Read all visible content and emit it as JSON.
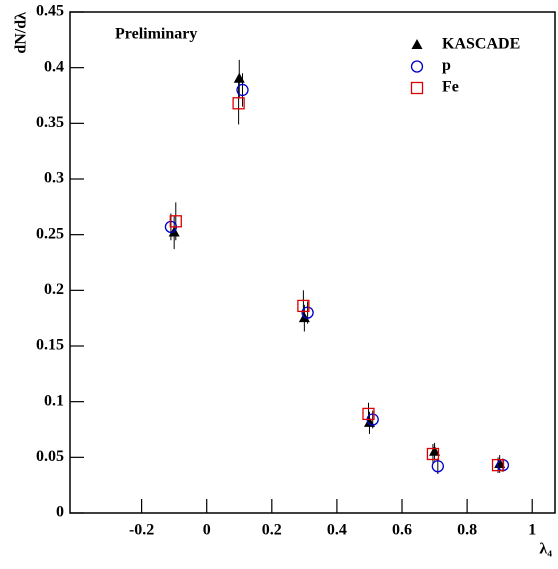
{
  "chart_data": {
    "type": "scatter",
    "annotation": "Preliminary",
    "ylabel": "dN/dλ",
    "xlabel": "λ₄",
    "xlim": [
      -0.42,
      1.07
    ],
    "ylim": [
      0,
      0.45
    ],
    "xticks": [
      -0.2,
      0,
      0.2,
      0.4,
      0.6,
      0.8,
      1
    ],
    "yticks": [
      0,
      0.05,
      0.1,
      0.15,
      0.2,
      0.25,
      0.3,
      0.35,
      0.4,
      0.45
    ],
    "legend": "upper right",
    "series": [
      {
        "name": "KASCADE",
        "color": "#000000",
        "marker": "triangle",
        "x": [
          -0.1,
          0.1,
          0.3,
          0.5,
          0.7,
          0.9
        ],
        "values": [
          0.252,
          0.39,
          0.175,
          0.081,
          0.055,
          0.044
        ],
        "errors": [
          0.015,
          0.017,
          0.012,
          0.01,
          0.008,
          0.008
        ]
      },
      {
        "name": "p",
        "color": "#0000cc",
        "marker": "circle",
        "x": [
          -0.11,
          0.11,
          0.31,
          0.51,
          0.71,
          0.91
        ],
        "values": [
          0.257,
          0.38,
          0.18,
          0.084,
          0.042,
          0.043
        ],
        "errors": [
          0.012,
          0.015,
          0.01,
          0.008,
          0.007,
          0.006
        ]
      },
      {
        "name": "Fe",
        "color": "#dd0000",
        "marker": "square",
        "x": [
          -0.095,
          0.098,
          0.297,
          0.497,
          0.695,
          0.895
        ],
        "values": [
          0.262,
          0.368,
          0.186,
          0.089,
          0.053,
          0.043
        ],
        "errors": [
          0.017,
          0.019,
          0.014,
          0.01,
          0.009,
          0.007
        ]
      }
    ]
  }
}
